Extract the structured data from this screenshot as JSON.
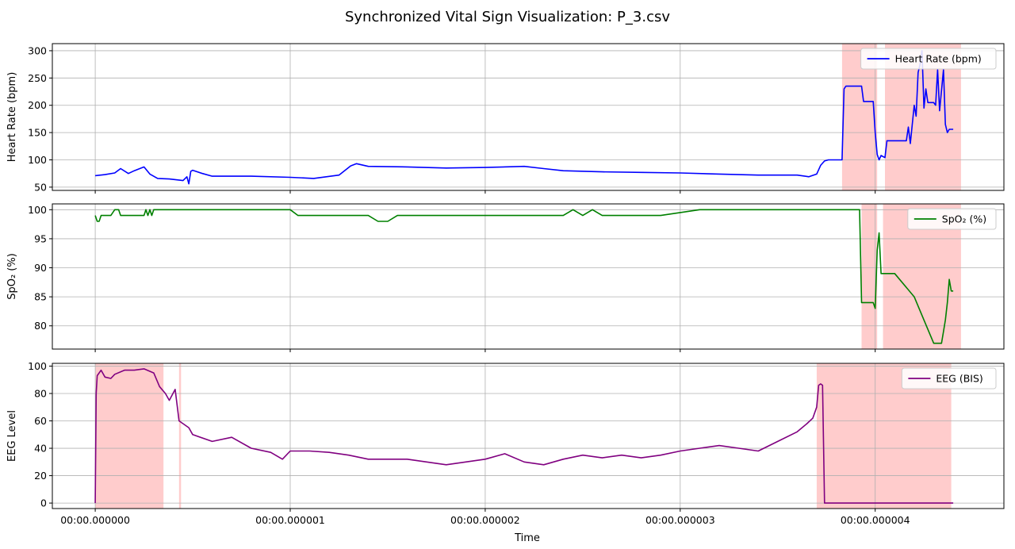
{
  "figure": {
    "title": "Synchronized Vital Sign Visualization: P_3.csv",
    "xlabel": "Time"
  },
  "chart_data": [
    {
      "type": "line",
      "panel": "top",
      "ylabel": "Heart Rate (bpm)",
      "ylim": [
        44,
        313
      ],
      "yticks": [
        50,
        100,
        150,
        200,
        250,
        300
      ],
      "xlim": [
        -2.2e-07,
        4.66e-06
      ],
      "xticks": [
        0,
        1e-06,
        2e-06,
        3e-06,
        4e-06
      ],
      "xtick_labels": [
        "00:00.000000",
        "00:00.000001",
        "00:00.000002",
        "00:00.000003",
        "00:00.000004"
      ],
      "grid": true,
      "legend": "top-right",
      "series": [
        {
          "name": "Heart Rate (bpm)",
          "color": "#0000ff",
          "x": [
            0,
            5e-08,
            1e-07,
            1.3e-07,
            1.7e-07,
            2e-07,
            2.5e-07,
            2.8e-07,
            3.2e-07,
            3.8e-07,
            4.5e-07,
            4.7e-07,
            4.8e-07,
            4.9e-07,
            5e-07,
            5.5e-07,
            6e-07,
            8e-07,
            1e-06,
            1.12e-06,
            1.25e-06,
            1.31e-06,
            1.34e-06,
            1.4e-06,
            1.6e-06,
            1.8e-06,
            2e-06,
            2.2e-06,
            2.3e-06,
            2.4e-06,
            2.6e-06,
            2.8e-06,
            3e-06,
            3.2e-06,
            3.4e-06,
            3.5e-06,
            3.6e-06,
            3.66e-06,
            3.7e-06,
            3.72e-06,
            3.74e-06,
            3.76e-06,
            3.83e-06,
            3.84e-06,
            3.85e-06,
            3.93e-06,
            3.94e-06,
            3.99e-06,
            4e-06,
            4.01e-06,
            4.02e-06,
            4.03e-06,
            4.05e-06,
            4.06e-06,
            4.12e-06,
            4.16e-06,
            4.17e-06,
            4.18e-06,
            4.2e-06,
            4.21e-06,
            4.22e-06,
            4.23e-06,
            4.24e-06,
            4.25e-06,
            4.26e-06,
            4.27e-06,
            4.28e-06,
            4.3e-06,
            4.31e-06,
            4.32e-06,
            4.33e-06,
            4.35e-06,
            4.36e-06,
            4.37e-06,
            4.38e-06,
            4.39e-06,
            4.4e-06
          ],
          "values": [
            71,
            73,
            76,
            84,
            75,
            80,
            87,
            74,
            66,
            65,
            62,
            69,
            56,
            79,
            81,
            75,
            70,
            70,
            68,
            66,
            72,
            89,
            93,
            88,
            87,
            85,
            86,
            88,
            84,
            80,
            78,
            77,
            76,
            74,
            72,
            72,
            72,
            69,
            74,
            90,
            98,
            100,
            100,
            230,
            235,
            235,
            207,
            207,
            150,
            110,
            100,
            108,
            104,
            135,
            135,
            135,
            160,
            130,
            200,
            180,
            260,
            275,
            300,
            195,
            230,
            205,
            205,
            205,
            200,
            265,
            190,
            265,
            165,
            150,
            156,
            156,
            156
          ]
        }
      ]
    },
    {
      "type": "line",
      "panel": "middle",
      "ylabel": "SpO₂ (%)",
      "ylim": [
        76,
        101
      ],
      "yticks": [
        80,
        85,
        90,
        95,
        100
      ],
      "xlim": [
        -2.2e-07,
        4.66e-06
      ],
      "grid": true,
      "legend": "top-right",
      "series": [
        {
          "name": "SpO₂ (%)",
          "color": "#008000",
          "x": [
            0,
            1e-08,
            2e-08,
            3e-08,
            8e-08,
            1e-07,
            1.2e-07,
            1.3e-07,
            1.4e-07,
            1.8e-07,
            2.5e-07,
            2.6e-07,
            2.7e-07,
            2.8e-07,
            2.9e-07,
            3e-07,
            3.2e-07,
            4.5e-07,
            1e-06,
            1.04e-06,
            1.4e-06,
            1.45e-06,
            1.5e-06,
            1.55e-06,
            2e-06,
            2.4e-06,
            2.45e-06,
            2.5e-06,
            2.55e-06,
            2.6e-06,
            2.9e-06,
            3.1e-06,
            3.3e-06,
            3.5e-06,
            3.6e-06,
            3.7e-06,
            3.8e-06,
            3.92e-06,
            3.93e-06,
            3.99e-06,
            4e-06,
            4.01e-06,
            4.02e-06,
            4.03e-06,
            4.04e-06,
            4.05e-06,
            4.1e-06,
            4.2e-06,
            4.25e-06,
            4.3e-06,
            4.33e-06,
            4.34e-06,
            4.35e-06,
            4.36e-06,
            4.37e-06,
            4.38e-06,
            4.39e-06,
            4.4e-06
          ],
          "values": [
            99,
            98,
            98,
            99,
            99,
            100,
            100,
            99,
            99,
            99,
            99,
            100,
            99,
            100,
            99,
            100,
            100,
            100,
            100,
            99,
            99,
            98,
            98,
            99,
            99,
            99,
            100,
            99,
            100,
            99,
            99,
            100,
            100,
            100,
            100,
            100,
            100,
            100,
            84,
            84,
            83,
            93,
            96,
            89,
            89,
            89,
            89,
            85,
            81,
            77,
            77,
            77,
            79,
            81,
            84,
            88,
            86,
            86
          ]
        }
      ]
    },
    {
      "type": "line",
      "panel": "bottom",
      "ylabel": "EEG Level",
      "ylim": [
        -4,
        102
      ],
      "yticks": [
        0,
        20,
        40,
        60,
        80,
        100
      ],
      "xlim": [
        -2.2e-07,
        4.66e-06
      ],
      "xlabel": "Time",
      "grid": true,
      "legend": "top-right",
      "series": [
        {
          "name": "EEG (BIS)",
          "color": "#800080",
          "x": [
            0,
            5e-09,
            1e-08,
            3e-08,
            5e-08,
            8e-08,
            1e-07,
            1.5e-07,
            2e-07,
            2.5e-07,
            3e-07,
            3.3e-07,
            3.6e-07,
            3.8e-07,
            4.1e-07,
            4.3e-07,
            4.5e-07,
            4.8e-07,
            5e-07,
            6e-07,
            7e-07,
            8e-07,
            9e-07,
            9.6e-07,
            1e-06,
            1.1e-06,
            1.2e-06,
            1.3e-06,
            1.4e-06,
            1.5e-06,
            1.6e-06,
            1.7e-06,
            1.8e-06,
            1.9e-06,
            2e-06,
            2.1e-06,
            2.2e-06,
            2.3e-06,
            2.4e-06,
            2.5e-06,
            2.6e-06,
            2.7e-06,
            2.8e-06,
            2.9e-06,
            3e-06,
            3.1e-06,
            3.2e-06,
            3.3e-06,
            3.4e-06,
            3.5e-06,
            3.6e-06,
            3.65e-06,
            3.68e-06,
            3.7e-06,
            3.71e-06,
            3.72e-06,
            3.73e-06,
            3.74e-06,
            3.8e-06,
            3.9e-06,
            4e-06,
            4.1e-06,
            4.2e-06,
            4.3e-06,
            4.4e-06
          ],
          "values": [
            0,
            80,
            93,
            97,
            92,
            91,
            94,
            97,
            97,
            98,
            95,
            85,
            80,
            75,
            83,
            60,
            58,
            55,
            50,
            45,
            48,
            40,
            37,
            32,
            38,
            38,
            37,
            35,
            32,
            32,
            32,
            30,
            28,
            30,
            32,
            36,
            30,
            28,
            32,
            35,
            33,
            35,
            33,
            35,
            38,
            40,
            42,
            40,
            38,
            45,
            52,
            58,
            62,
            70,
            86,
            87,
            86,
            0,
            0,
            0,
            0,
            0,
            0,
            0,
            0
          ]
        }
      ]
    }
  ],
  "highlights": {
    "color": "#ffcccc",
    "hr": [
      [
        3.83e-06,
        4.01e-06
      ],
      [
        4.05e-06,
        4.44e-06
      ]
    ],
    "spo2": [
      [
        3.93e-06,
        4.01e-06
      ],
      [
        4.04e-06,
        4.44e-06
      ]
    ],
    "eeg": [
      [
        0.0,
        3.5e-07
      ],
      [
        4.3e-07,
        4.4e-07
      ],
      [
        3.7e-06,
        4.39e-06
      ]
    ]
  }
}
